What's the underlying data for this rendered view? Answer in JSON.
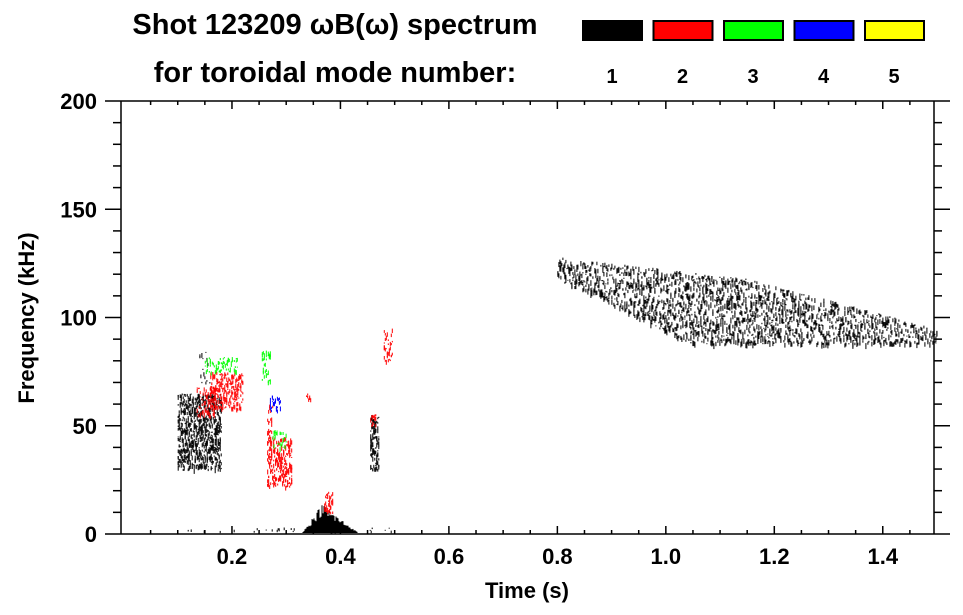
{
  "chart_data": {
    "type": "heatmap",
    "title_line1": "Shot 123209 ωB(ω) spectrum",
    "title_line2": "for toroidal mode number:",
    "xlabel": "Time (s)",
    "ylabel": "Frequency (kHz)",
    "xlim": [
      0,
      1.5
    ],
    "ylim": [
      0,
      200
    ],
    "x_ticks": [
      0.2,
      0.4,
      0.6,
      0.8,
      1.0,
      1.2,
      1.4
    ],
    "x_tick_labels": [
      "0.2",
      "0.4",
      "0.6",
      "0.8",
      "1.0",
      "1.2",
      "1.4"
    ],
    "x_minor_step": 0.05,
    "y_ticks": [
      0,
      50,
      100,
      150,
      200
    ],
    "y_tick_labels": [
      "0",
      "50",
      "100",
      "150",
      "200"
    ],
    "y_minor_step": 10,
    "legend": {
      "placement": "top-right",
      "entries": [
        {
          "mode": "1",
          "color": "#000000"
        },
        {
          "mode": "2",
          "color": "#ff0000"
        },
        {
          "mode": "3",
          "color": "#00ff00"
        },
        {
          "mode": "4",
          "color": "#0000ff"
        },
        {
          "mode": "5",
          "color": "#ffff00"
        }
      ]
    },
    "features": [
      {
        "mode": 1,
        "shape": "band",
        "t": [
          0.8,
          1.5
        ],
        "f_low_start": 118,
        "f_low_end": 88,
        "f_low_knee_t": 1.05,
        "f_high": [
          128,
          118,
          95
        ],
        "density": 0.55,
        "description_values": "n=1 mode 85-130 kHz from 0.8 to 1.5 s"
      },
      {
        "mode": 1,
        "shape": "blob",
        "t": [
          0.1,
          0.18
        ],
        "f": [
          30,
          65
        ],
        "density": 0.6
      },
      {
        "mode": 1,
        "shape": "blob",
        "t": [
          0.14,
          0.16
        ],
        "f": [
          70,
          85
        ],
        "density": 0.3
      },
      {
        "mode": 1,
        "shape": "blob",
        "t": [
          0.455,
          0.47
        ],
        "f": [
          30,
          55
        ],
        "density": 0.6
      },
      {
        "mode": 1,
        "shape": "hill",
        "t": [
          0.33,
          0.43
        ],
        "f": [
          0,
          12
        ],
        "peak_t": 0.365,
        "density": 0.8
      },
      {
        "mode": 1,
        "shape": "floor",
        "t": [
          0.1,
          0.5
        ],
        "f": [
          0,
          3
        ],
        "density": 0.15
      },
      {
        "mode": 2,
        "shape": "blob",
        "t": [
          0.16,
          0.22
        ],
        "f": [
          58,
          75
        ],
        "density": 0.55
      },
      {
        "mode": 2,
        "shape": "blob",
        "t": [
          0.135,
          0.17
        ],
        "f": [
          55,
          68
        ],
        "density": 0.45
      },
      {
        "mode": 2,
        "shape": "blob",
        "t": [
          0.265,
          0.31
        ],
        "f": [
          22,
          45
        ],
        "density": 0.55
      },
      {
        "mode": 2,
        "shape": "blob",
        "t": [
          0.265,
          0.275
        ],
        "f": [
          42,
          60
        ],
        "density": 0.35
      },
      {
        "mode": 2,
        "shape": "blob",
        "t": [
          0.335,
          0.345
        ],
        "f": [
          62,
          66
        ],
        "density": 0.6
      },
      {
        "mode": 2,
        "shape": "blob",
        "t": [
          0.37,
          0.385
        ],
        "f": [
          10,
          20
        ],
        "density": 0.5
      },
      {
        "mode": 2,
        "shape": "blob",
        "t": [
          0.455,
          0.465
        ],
        "f": [
          50,
          56
        ],
        "density": 0.5
      },
      {
        "mode": 2,
        "shape": "blob",
        "t": [
          0.48,
          0.495
        ],
        "f": [
          80,
          95
        ],
        "density": 0.4
      },
      {
        "mode": 3,
        "shape": "blob",
        "t": [
          0.15,
          0.21
        ],
        "f": [
          75,
          82
        ],
        "density": 0.4
      },
      {
        "mode": 3,
        "shape": "blob",
        "t": [
          0.255,
          0.27
        ],
        "f": [
          70,
          85
        ],
        "density": 0.4
      },
      {
        "mode": 3,
        "shape": "blob",
        "t": [
          0.275,
          0.3
        ],
        "f": [
          40,
          48
        ],
        "density": 0.45
      },
      {
        "mode": 4,
        "shape": "blob",
        "t": [
          0.27,
          0.29
        ],
        "f": [
          57,
          64
        ],
        "density": 0.5
      }
    ]
  }
}
